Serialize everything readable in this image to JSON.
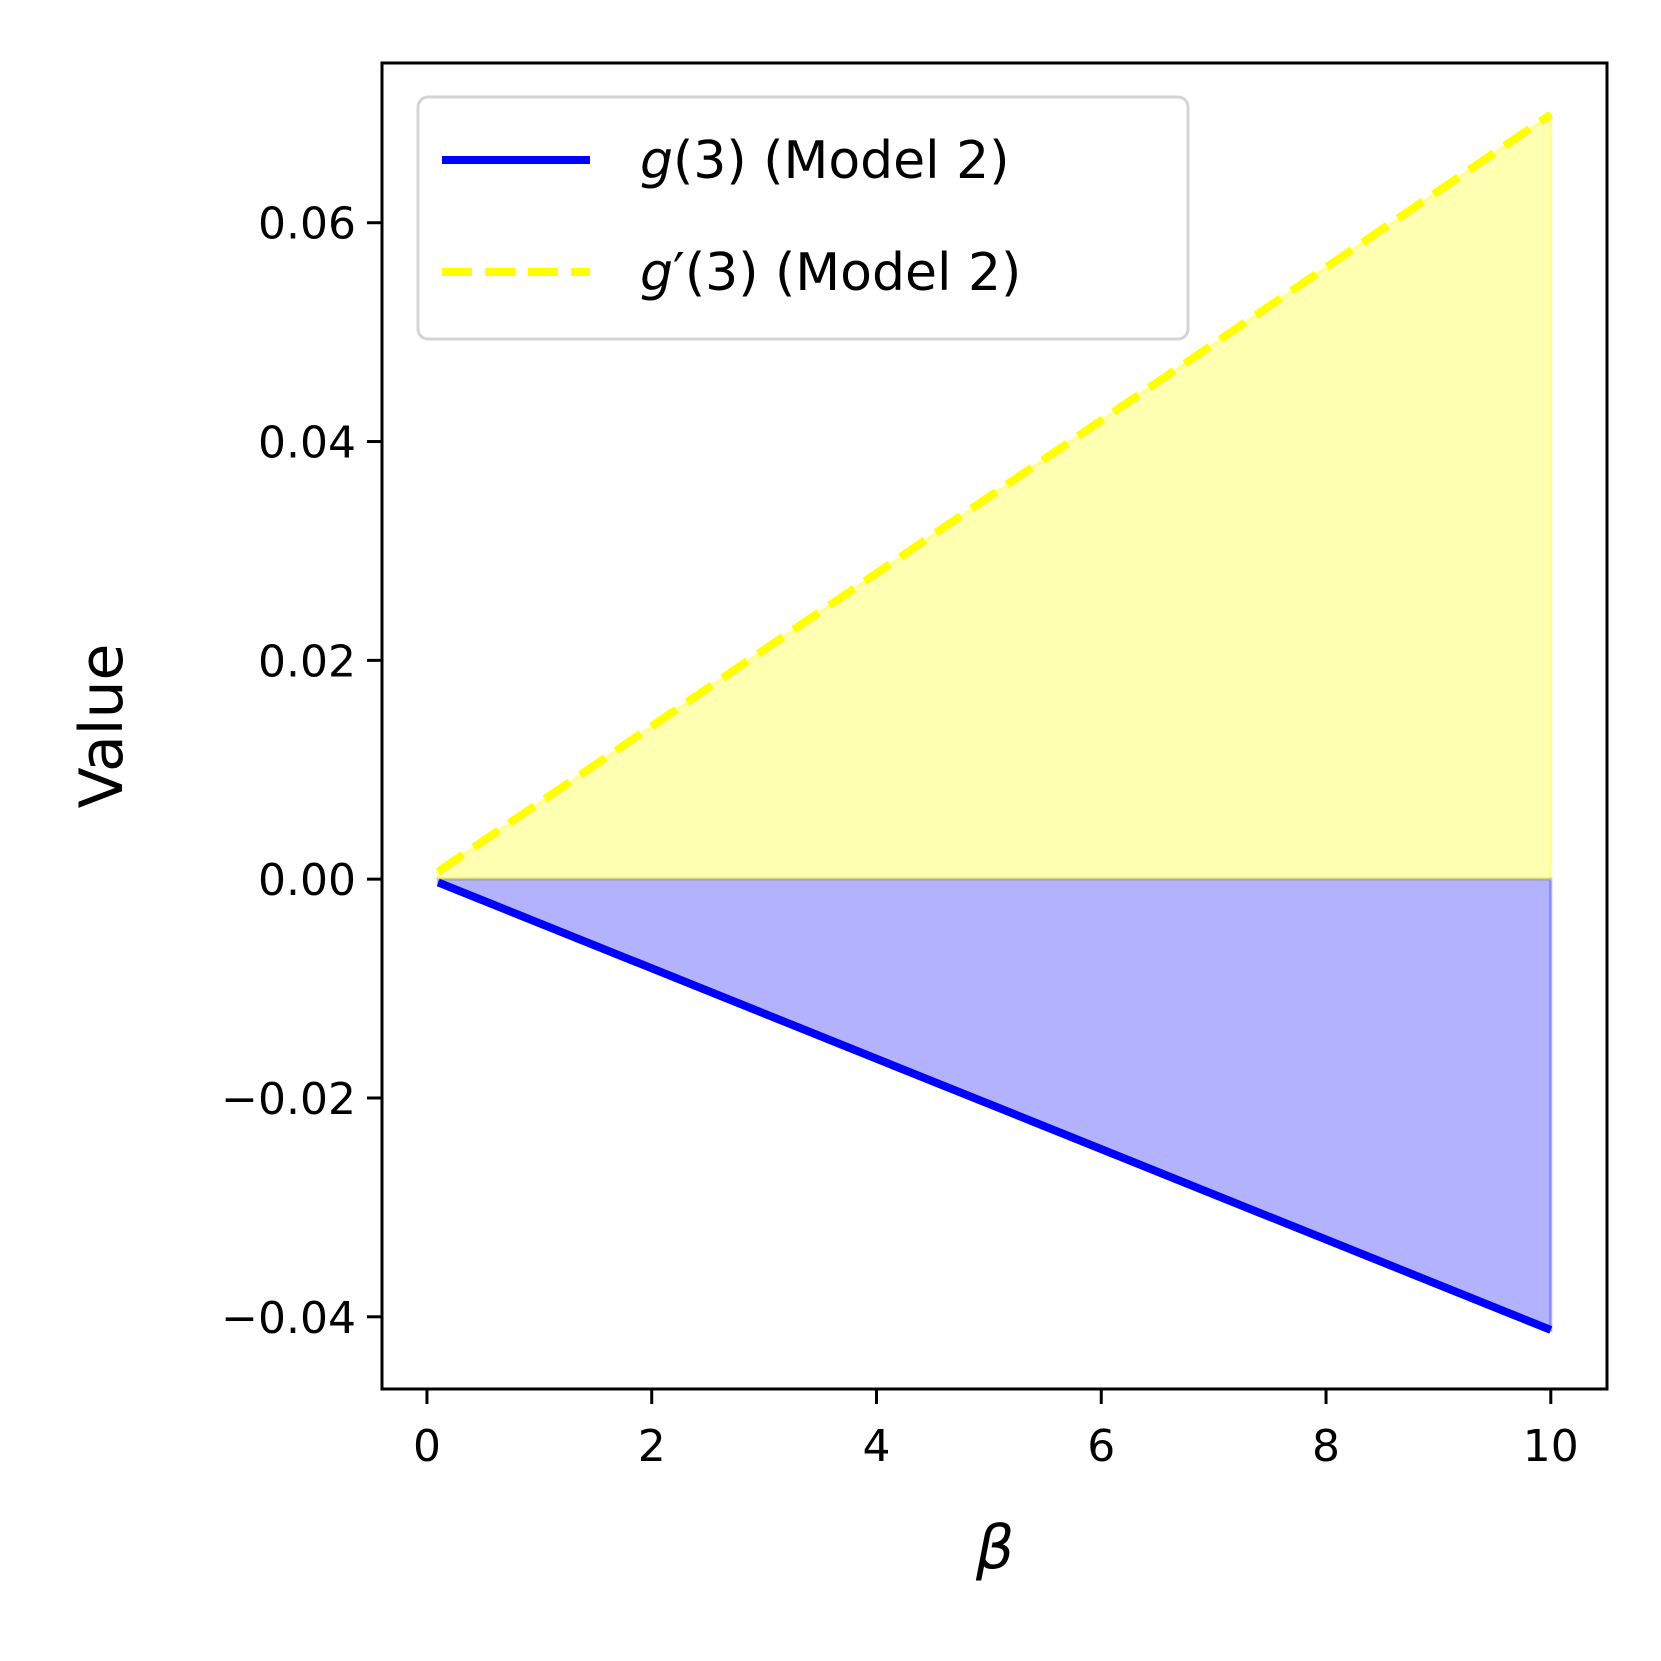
{
  "chart_data": {
    "type": "line",
    "xlabel": "β",
    "ylabel": "Value",
    "xlim": [
      -0.4,
      10.5
    ],
    "ylim": [
      -0.0466,
      0.0746
    ],
    "xticks": [
      0,
      2,
      4,
      6,
      8,
      10
    ],
    "xtick_labels": [
      "0",
      "2",
      "4",
      "6",
      "8",
      "10"
    ],
    "yticks": [
      -0.04,
      -0.02,
      0.0,
      0.02,
      0.04,
      0.06
    ],
    "ytick_labels": [
      "−0.04",
      "−0.02",
      "0.00",
      "0.02",
      "0.04",
      "0.06"
    ],
    "grid": false,
    "legend_position": "top-left",
    "series": [
      {
        "name": "g(3) (Model 2)",
        "name_parts": {
          "italic": "g",
          "rest": "(3) (Model 2)"
        },
        "style": "solid",
        "color": "#0000ff",
        "fill_color": "#0000ff",
        "x": [
          0.1,
          10.0
        ],
        "y": [
          -0.0003,
          -0.0412
        ]
      },
      {
        "name": "g′(3) (Model 2)",
        "name_parts": {
          "italic": "g",
          "rest": "′(3) (Model 2)"
        },
        "style": "dashed",
        "color": "#ffff00",
        "fill_color": "#ffff00",
        "x": [
          0.1,
          10.0
        ],
        "y": [
          0.0007,
          0.0699
        ]
      }
    ]
  }
}
